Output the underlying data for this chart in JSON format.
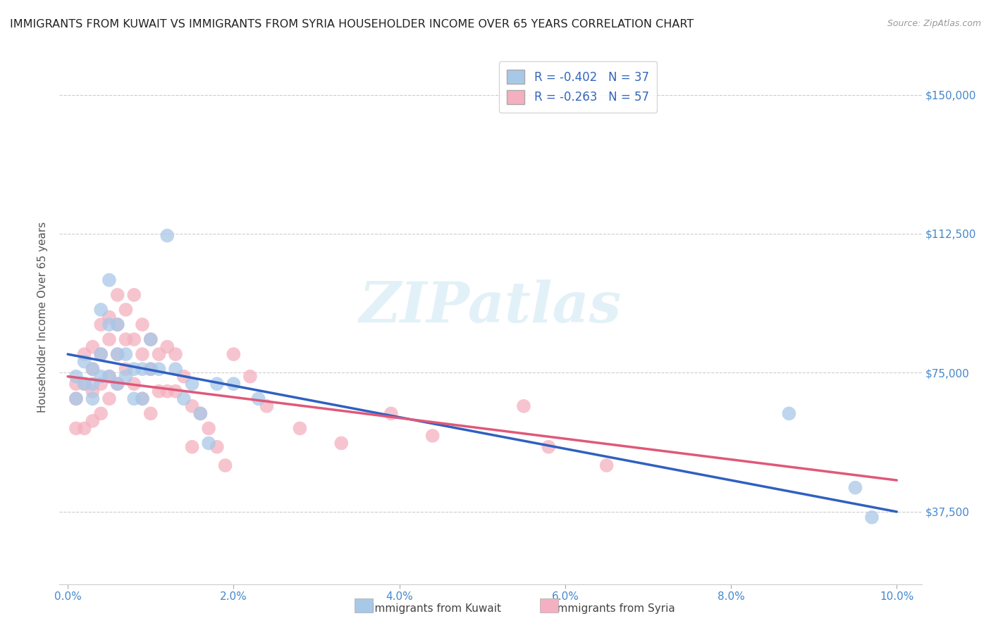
{
  "title": "IMMIGRANTS FROM KUWAIT VS IMMIGRANTS FROM SYRIA HOUSEHOLDER INCOME OVER 65 YEARS CORRELATION CHART",
  "source": "Source: ZipAtlas.com",
  "ylabel": "Householder Income Over 65 years",
  "xlabel_ticks": [
    "0.0%",
    "2.0%",
    "4.0%",
    "6.0%",
    "8.0%",
    "10.0%"
  ],
  "xlabel_vals": [
    0.0,
    0.02,
    0.04,
    0.06,
    0.08,
    0.1
  ],
  "ylabel_ticks": [
    "$37,500",
    "$75,000",
    "$112,500",
    "$150,000"
  ],
  "ylabel_vals": [
    37500,
    75000,
    112500,
    150000
  ],
  "xlim": [
    -0.001,
    0.103
  ],
  "ylim": [
    18000,
    162000
  ],
  "kuwait_R": -0.402,
  "kuwait_N": 37,
  "syria_R": -0.263,
  "syria_N": 57,
  "watermark": "ZIPatlas",
  "kuwait_color": "#a8c8e8",
  "syria_color": "#f4b0c0",
  "kuwait_line_color": "#3060c0",
  "syria_line_color": "#e05878",
  "kuwait_x": [
    0.001,
    0.001,
    0.002,
    0.002,
    0.003,
    0.003,
    0.003,
    0.004,
    0.004,
    0.004,
    0.005,
    0.005,
    0.005,
    0.006,
    0.006,
    0.006,
    0.007,
    0.007,
    0.008,
    0.008,
    0.009,
    0.009,
    0.01,
    0.01,
    0.011,
    0.012,
    0.013,
    0.014,
    0.015,
    0.016,
    0.017,
    0.018,
    0.02,
    0.023,
    0.087,
    0.095,
    0.097
  ],
  "kuwait_y": [
    74000,
    68000,
    78000,
    72000,
    76000,
    72000,
    68000,
    92000,
    80000,
    74000,
    100000,
    88000,
    74000,
    88000,
    80000,
    72000,
    80000,
    74000,
    76000,
    68000,
    76000,
    68000,
    84000,
    76000,
    76000,
    112000,
    76000,
    68000,
    72000,
    64000,
    56000,
    72000,
    72000,
    68000,
    64000,
    44000,
    36000
  ],
  "syria_x": [
    0.001,
    0.001,
    0.001,
    0.002,
    0.002,
    0.002,
    0.003,
    0.003,
    0.003,
    0.003,
    0.004,
    0.004,
    0.004,
    0.004,
    0.005,
    0.005,
    0.005,
    0.005,
    0.006,
    0.006,
    0.006,
    0.006,
    0.007,
    0.007,
    0.007,
    0.008,
    0.008,
    0.008,
    0.009,
    0.009,
    0.009,
    0.01,
    0.01,
    0.01,
    0.011,
    0.011,
    0.012,
    0.012,
    0.013,
    0.013,
    0.014,
    0.015,
    0.015,
    0.016,
    0.017,
    0.018,
    0.019,
    0.02,
    0.022,
    0.024,
    0.028,
    0.033,
    0.039,
    0.044,
    0.055,
    0.058,
    0.065
  ],
  "syria_y": [
    72000,
    68000,
    60000,
    80000,
    72000,
    60000,
    82000,
    76000,
    70000,
    62000,
    88000,
    80000,
    72000,
    64000,
    90000,
    84000,
    74000,
    68000,
    96000,
    88000,
    80000,
    72000,
    92000,
    84000,
    76000,
    96000,
    84000,
    72000,
    88000,
    80000,
    68000,
    84000,
    76000,
    64000,
    80000,
    70000,
    82000,
    70000,
    80000,
    70000,
    74000,
    66000,
    55000,
    64000,
    60000,
    55000,
    50000,
    80000,
    74000,
    66000,
    60000,
    56000,
    64000,
    58000,
    66000,
    55000,
    50000
  ],
  "grid_color": "#cccccc",
  "background_color": "#ffffff",
  "title_color": "#222222",
  "axis_color": "#4488cc",
  "legend_label_color": "#3366bb",
  "kuwait_line_x0": 0.0,
  "kuwait_line_y0": 80000,
  "kuwait_line_x1": 0.1,
  "kuwait_line_y1": 37500,
  "syria_line_x0": 0.0,
  "syria_line_y0": 74000,
  "syria_line_x1": 0.1,
  "syria_line_y1": 46000
}
